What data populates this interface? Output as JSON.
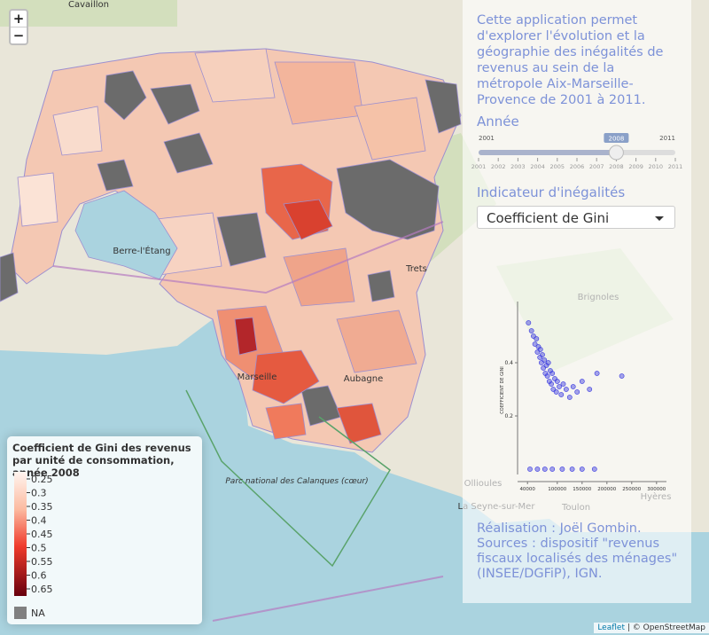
{
  "zoom": {
    "in": "+",
    "out": "−"
  },
  "panel": {
    "description": "Cette application permet d'explorer l'évolution et la géographie des inégalités de revenus au sein de la métropole Aix-Marseille-Provence de 2001 à 2011.",
    "year": {
      "label": "Année",
      "min": 2001,
      "max": 2011,
      "value": 2008,
      "ticks": [
        2001,
        2002,
        2003,
        2004,
        2005,
        2006,
        2007,
        2008,
        2009,
        2010,
        2011
      ]
    },
    "indicator": {
      "label": "Indicateur d'inégalités",
      "selected": "Coefficient de Gini"
    },
    "scatter": {
      "type": "scatter",
      "y_label": "COEFFICIENT DE GINI",
      "color": "#3a3ae0",
      "xlim": [
        20000,
        320000
      ],
      "xticks": [
        40000,
        100000,
        150000,
        200000,
        250000,
        300000
      ],
      "ylim": [
        -0.02,
        0.63
      ],
      "yticks": [
        0.2,
        0.4
      ],
      "x": [
        42000,
        48000,
        52000,
        55000,
        58000,
        60000,
        62000,
        65000,
        66000,
        68000,
        70000,
        72000,
        74000,
        76000,
        78000,
        80000,
        82000,
        84000,
        86000,
        88000,
        90000,
        92000,
        95000,
        98000,
        100000,
        104000,
        108000,
        112000,
        118000,
        125000,
        132000,
        140000,
        150000,
        165000,
        180000,
        230000,
        45000,
        60000,
        75000,
        90000,
        110000,
        130000,
        150000,
        175000
      ],
      "y": [
        0.55,
        0.52,
        0.5,
        0.47,
        0.49,
        0.44,
        0.46,
        0.42,
        0.45,
        0.4,
        0.43,
        0.38,
        0.41,
        0.36,
        0.39,
        0.35,
        0.4,
        0.33,
        0.37,
        0.32,
        0.36,
        0.3,
        0.34,
        0.29,
        0.33,
        0.31,
        0.28,
        0.32,
        0.3,
        0.27,
        0.31,
        0.29,
        0.33,
        0.3,
        0.36,
        0.35,
        0,
        0,
        0,
        0,
        0,
        0,
        0,
        0
      ]
    },
    "credits": "Réalisation : Joël Gombin. Sources : dispositif \"revenus fiscaux localisés des ménages\" (INSEE/DGFiP), IGN."
  },
  "legend": {
    "title": "Coefficient de Gini des revenus par unité de consommation, année 2008",
    "items": [
      0.25,
      0.3,
      0.35,
      0.4,
      0.45,
      0.5,
      0.55,
      0.6,
      0.65
    ],
    "na": "NA"
  },
  "map_labels": [
    "Cavaillon",
    "Berre-l'Étang",
    "Marseille",
    "Aubagne",
    "Trets",
    "Brignoles",
    "Toulon",
    "Hyères",
    "Ollioules",
    "La Seyne-sur-Mer",
    "Parc national des Calanques (cœur)"
  ],
  "attribution": {
    "leaflet": "Leaflet",
    "osm": "© OpenStreetMap"
  }
}
